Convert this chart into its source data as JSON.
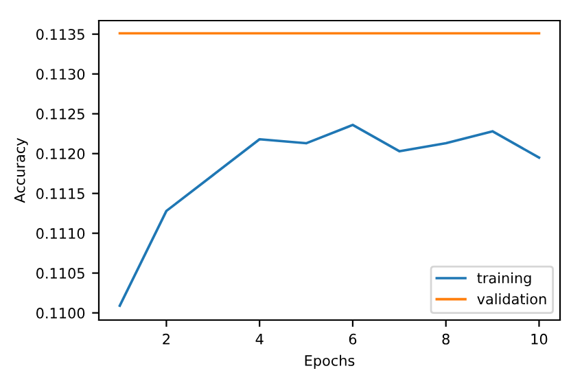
{
  "chart_data": {
    "type": "line",
    "xlabel": "Epochs",
    "ylabel": "Accuracy",
    "x": [
      1,
      2,
      3,
      4,
      5,
      6,
      7,
      8,
      9,
      10
    ],
    "series": [
      {
        "name": "training",
        "color": "#1f77b4",
        "values": [
          0.11009,
          0.11128,
          0.11173,
          0.11218,
          0.11213,
          0.11236,
          0.11203,
          0.11213,
          0.11228,
          0.11195
        ]
      },
      {
        "name": "validation",
        "color": "#ff7f0e",
        "values": [
          0.11351,
          0.11351,
          0.11351,
          0.11351,
          0.11351,
          0.11351,
          0.11351,
          0.11351,
          0.11351,
          0.11351
        ]
      }
    ],
    "xlim": [
      0.55,
      10.45
    ],
    "xticks": [
      2,
      4,
      6,
      8,
      10
    ],
    "ylim": [
      0.10991,
      0.11367
    ],
    "yticks": [
      {
        "value": 0.11,
        "label": "0.1100"
      },
      {
        "value": 0.1105,
        "label": "0.1105"
      },
      {
        "value": 0.111,
        "label": "0.1110"
      },
      {
        "value": 0.1115,
        "label": "0.1115"
      },
      {
        "value": 0.112,
        "label": "0.1120"
      },
      {
        "value": 0.1125,
        "label": "0.1125"
      },
      {
        "value": 0.113,
        "label": "0.1130"
      },
      {
        "value": 0.1135,
        "label": "0.1135"
      }
    ],
    "grid": false,
    "legend": "bottom right",
    "marker": "none",
    "line_style": "solid"
  }
}
